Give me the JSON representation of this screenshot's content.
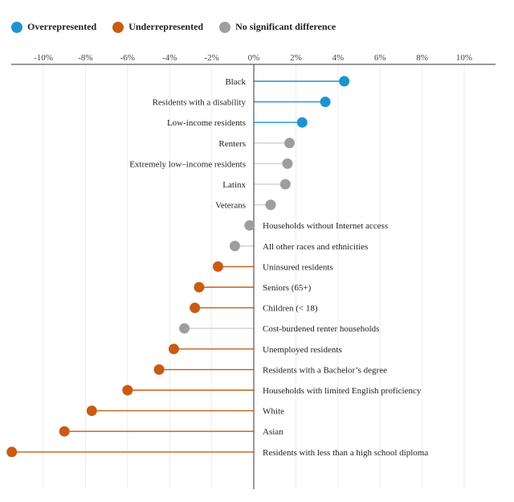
{
  "legend": {
    "over": {
      "label": "Overrepresented",
      "color": "#1f93d0"
    },
    "under": {
      "label": "Underrepresented",
      "color": "#c95b12"
    },
    "none": {
      "label": "No significant difference",
      "color": "#9e9e9e"
    }
  },
  "chart_data": {
    "type": "lollipop",
    "title": "",
    "xlabel": "",
    "ylabel": "",
    "xlim": [
      -11.5,
      11.5
    ],
    "x_ticks": [
      {
        "value": -10,
        "label": "-10%"
      },
      {
        "value": -8,
        "label": "-8%"
      },
      {
        "value": -6,
        "label": "-6%"
      },
      {
        "value": -4,
        "label": "-4%"
      },
      {
        "value": -2,
        "label": "-2%"
      },
      {
        "value": 0,
        "label": "0%"
      },
      {
        "value": 2,
        "label": "2%"
      },
      {
        "value": 4,
        "label": "4%"
      },
      {
        "value": 6,
        "label": "6%"
      },
      {
        "value": 8,
        "label": "8%"
      },
      {
        "value": 10,
        "label": "10%"
      }
    ],
    "grid": true,
    "legend_position": "top-left",
    "items": [
      {
        "label": "Black",
        "value": 4.3,
        "status": "over"
      },
      {
        "label": "Residents with a disability",
        "value": 3.4,
        "status": "over"
      },
      {
        "label": "Low-income residents",
        "value": 2.3,
        "status": "over"
      },
      {
        "label": "Renters",
        "value": 1.7,
        "status": "none"
      },
      {
        "label": "Extremely low–income residents",
        "value": 1.6,
        "status": "none"
      },
      {
        "label": "Latinx",
        "value": 1.5,
        "status": "none"
      },
      {
        "label": "Veterans",
        "value": 0.8,
        "status": "none"
      },
      {
        "label": "Households without Internet access",
        "value": -0.2,
        "status": "none"
      },
      {
        "label": "All other races and ethnicities",
        "value": -0.9,
        "status": "none"
      },
      {
        "label": "Uninsured residents",
        "value": -1.7,
        "status": "under"
      },
      {
        "label": "Seniors (65+)",
        "value": -2.6,
        "status": "under"
      },
      {
        "label": "Children (< 18)",
        "value": -2.8,
        "status": "under"
      },
      {
        "label": "Cost-burdened renter households",
        "value": -3.3,
        "status": "none"
      },
      {
        "label": "Unemployed residents",
        "value": -3.8,
        "status": "under"
      },
      {
        "label": "Residents with a Bachelor’s degree",
        "value": -4.5,
        "status": "under"
      },
      {
        "label": "Households with limited English proficiency",
        "value": -6.0,
        "status": "under"
      },
      {
        "label": "White",
        "value": -7.7,
        "status": "under"
      },
      {
        "label": "Asian",
        "value": -9.0,
        "status": "under"
      },
      {
        "label": "Residents with less than a high school diploma",
        "value": -11.5,
        "status": "under"
      }
    ]
  }
}
